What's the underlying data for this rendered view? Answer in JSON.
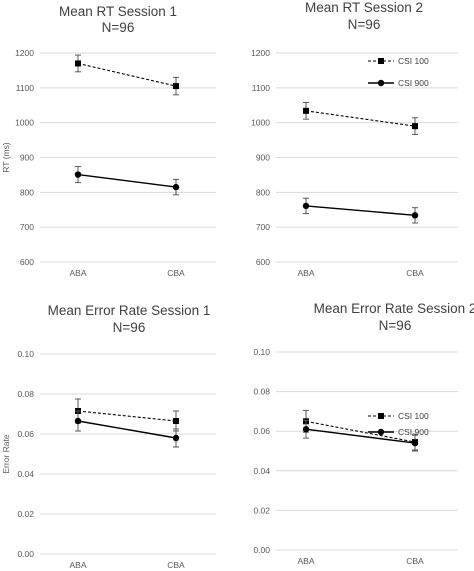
{
  "chart_data": [
    {
      "type": "line",
      "title": "Mean RT Session 1",
      "subtitle": "N=96",
      "xlabel": "",
      "ylabel": "RT (ms)",
      "categories": [
        "ABA",
        "CBA"
      ],
      "ylim": [
        600,
        1200
      ],
      "yticks": [
        "600",
        "700",
        "800",
        "900",
        "1000",
        "1100",
        "1200"
      ],
      "grid": true,
      "legend": null,
      "series": [
        {
          "name": "CSI 100",
          "values": [
            1170,
            1105
          ],
          "errors": [
            24,
            25
          ],
          "marker": "square",
          "dashed": true
        },
        {
          "name": "CSI 900",
          "values": [
            851,
            815
          ],
          "errors": [
            23,
            22
          ],
          "marker": "circle",
          "dashed": false
        }
      ]
    },
    {
      "type": "line",
      "title": "Mean RT Session 2",
      "subtitle": "N=96",
      "xlabel": "",
      "ylabel": "",
      "categories": [
        "ABA",
        "CBA"
      ],
      "ylim": [
        600,
        1200
      ],
      "yticks": [
        "600",
        "700",
        "800",
        "900",
        "1000",
        "1100",
        "1200"
      ],
      "grid": true,
      "legend": "top-right",
      "series": [
        {
          "name": "CSI 100",
          "values": [
            1034,
            990
          ],
          "errors": [
            24,
            24
          ],
          "marker": "square",
          "dashed": true
        },
        {
          "name": "CSI 900",
          "values": [
            761,
            734
          ],
          "errors": [
            22,
            22
          ],
          "marker": "circle",
          "dashed": false
        }
      ]
    },
    {
      "type": "line",
      "title": "Mean Error Rate Session 1",
      "subtitle": "N=96",
      "xlabel": "",
      "ylabel": "Error Rate",
      "categories": [
        "ABA",
        "CBA"
      ],
      "ylim": [
        0,
        0.1
      ],
      "yticks": [
        "0.00",
        "0.02",
        "0.04",
        "0.06",
        "0.08",
        "0.10"
      ],
      "grid": true,
      "legend": null,
      "series": [
        {
          "name": "CSI 100",
          "values": [
            0.0715,
            0.0665
          ],
          "errors": [
            0.006,
            0.005
          ],
          "marker": "square",
          "dashed": true
        },
        {
          "name": "CSI 900",
          "values": [
            0.0665,
            0.058
          ],
          "errors": [
            0.005,
            0.0045
          ],
          "marker": "circle",
          "dashed": false
        }
      ]
    },
    {
      "type": "line",
      "title": "Mean Error Rate Session 2",
      "subtitle": "N=96",
      "xlabel": "",
      "ylabel": "",
      "categories": [
        "ABA",
        "CBA"
      ],
      "ylim": [
        0,
        0.1
      ],
      "yticks": [
        "0.00",
        "0.02",
        "0.04",
        "0.06",
        "0.08",
        "0.10"
      ],
      "grid": true,
      "legend": "top-right",
      "series": [
        {
          "name": "CSI 100",
          "values": [
            0.065,
            0.0545
          ],
          "errors": [
            0.0055,
            0.004
          ],
          "marker": "square",
          "dashed": true
        },
        {
          "name": "CSI 900",
          "values": [
            0.061,
            0.054
          ],
          "errors": [
            0.0045,
            0.004
          ],
          "marker": "circle",
          "dashed": false
        }
      ]
    }
  ],
  "colors": {
    "line": "#000000",
    "grid": "#d9d9d9",
    "text": "#595959",
    "title": "#404040"
  }
}
